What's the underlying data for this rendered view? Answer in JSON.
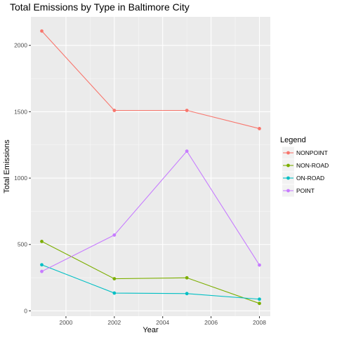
{
  "chart_data": {
    "type": "line",
    "title": "Total Emissions by Type in Baltimore City",
    "xlabel": "Year",
    "ylabel": "Total Emissions",
    "x": [
      1999,
      2002,
      2005,
      2008
    ],
    "xlim": [
      1998.55,
      2008.45
    ],
    "ylim": [
      -40,
      2215
    ],
    "xticks": [
      2000,
      2002,
      2004,
      2006,
      2008
    ],
    "yticks": [
      0,
      500,
      1000,
      1500,
      2000
    ],
    "grid": true,
    "legend_title": "Legend",
    "legend_position": "right",
    "series": [
      {
        "name": "NONPOINT",
        "color": "#F8766D",
        "values": [
          2108,
          1510,
          1510,
          1373
        ]
      },
      {
        "name": "NON-ROAD",
        "color": "#7CAE00",
        "values": [
          523,
          242,
          249,
          56
        ]
      },
      {
        "name": "ON-ROAD",
        "color": "#00BFC4",
        "values": [
          347,
          134,
          130,
          88
        ]
      },
      {
        "name": "POINT",
        "color": "#C77CFF",
        "values": [
          297,
          571,
          1203,
          345
        ]
      }
    ]
  }
}
